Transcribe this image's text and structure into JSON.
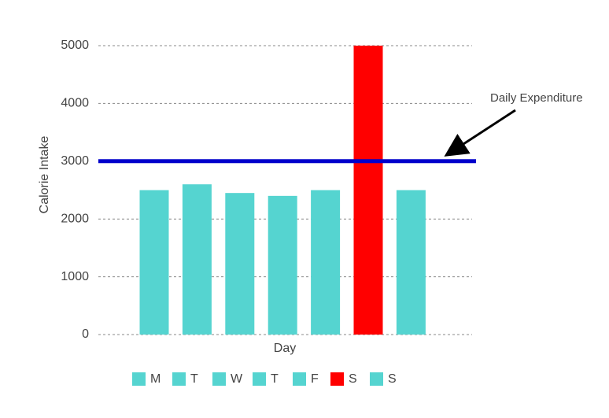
{
  "chart_data": {
    "type": "bar",
    "x_label": "Day",
    "y_label": "Calorie Intake",
    "categories": [
      "M",
      "T",
      "W",
      "T",
      "F",
      "S",
      "S"
    ],
    "values": [
      2500,
      2600,
      2450,
      2400,
      2500,
      5000,
      2500
    ],
    "colors": [
      "#55d4d0",
      "#55d4d0",
      "#55d4d0",
      "#55d4d0",
      "#55d4d0",
      "#ff0000",
      "#55d4d0"
    ],
    "ylim": [
      0,
      5000
    ],
    "yticks": [
      0,
      1000,
      2000,
      3000,
      4000,
      5000
    ],
    "grid": true,
    "legend": "bottom",
    "reference_line": {
      "value": 3000,
      "label": "Daily Expenditure",
      "color": "#0000cc"
    }
  }
}
